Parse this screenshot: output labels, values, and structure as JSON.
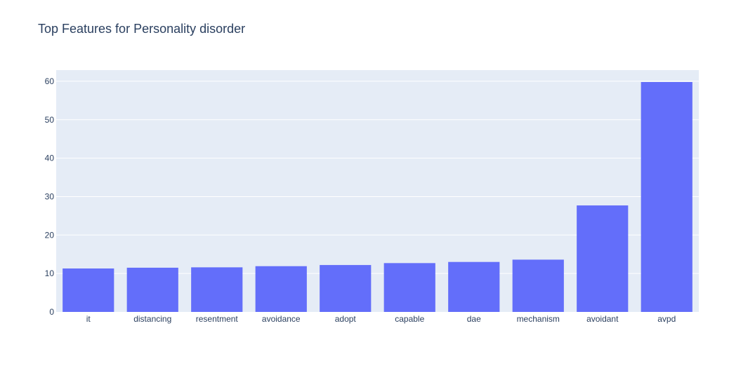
{
  "chart_data": {
    "type": "bar",
    "title": "Top Features for Personality disorder",
    "xlabel": "",
    "ylabel": "",
    "categories": [
      "it",
      "distancing",
      "resentment",
      "avoidance",
      "adopt",
      "capable",
      "dae",
      "mechanism",
      "avoidant",
      "avpd"
    ],
    "values": [
      11.3,
      11.5,
      11.6,
      11.9,
      12.2,
      12.7,
      13.0,
      13.6,
      27.7,
      59.8
    ],
    "ylim": [
      0,
      62.9
    ],
    "yticks": [
      0,
      10,
      20,
      30,
      40,
      50,
      60
    ],
    "grid": true,
    "legend": "none",
    "colors": {
      "bar": "#636efa",
      "plot_background": "#e5ecf6",
      "grid": "#ffffff",
      "text": "#2a3f5f"
    }
  }
}
